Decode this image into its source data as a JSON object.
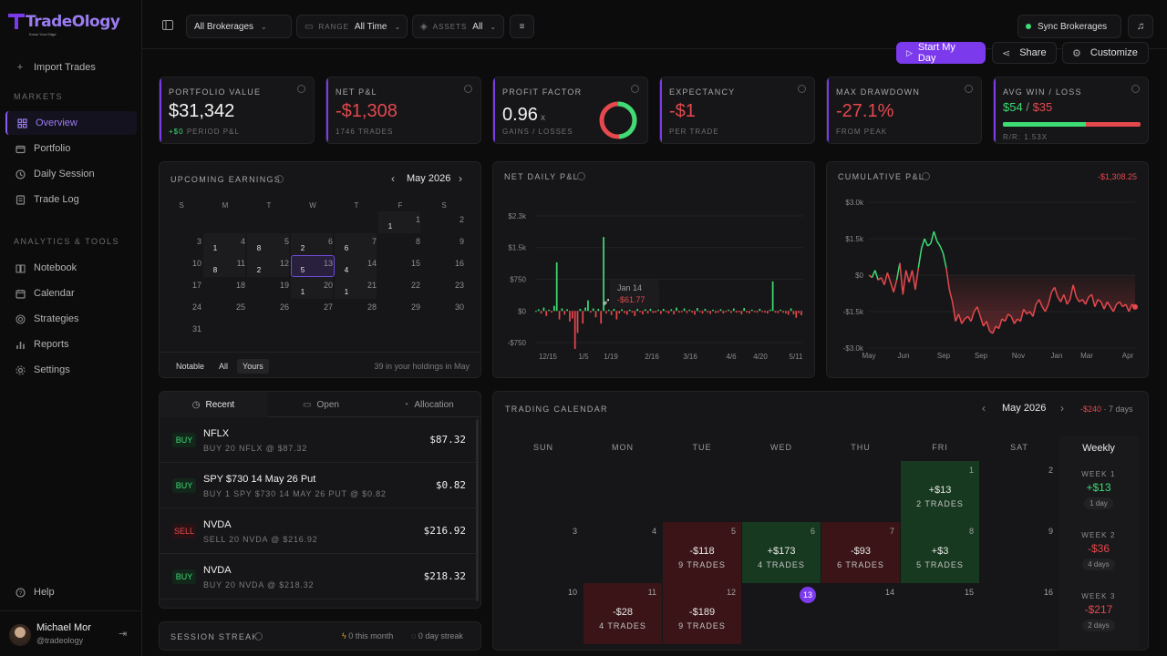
{
  "brand": {
    "name": "TradeOlogy",
    "tagline": "Know Your Edge"
  },
  "sidebar": {
    "import_label": "Import Trades",
    "sections": [
      {
        "heading": "MARKETS",
        "items": [
          {
            "label": "Overview",
            "icon": "grid-icon",
            "active": true
          },
          {
            "label": "Portfolio",
            "icon": "wallet-icon"
          },
          {
            "label": "Daily Session",
            "icon": "clock-icon"
          },
          {
            "label": "Trade Log",
            "icon": "list-icon"
          }
        ]
      },
      {
        "heading": "ANALYTICS & TOOLS",
        "items": [
          {
            "label": "Notebook",
            "icon": "book-icon"
          },
          {
            "label": "Calendar",
            "icon": "calendar-icon"
          },
          {
            "label": "Strategies",
            "icon": "target-icon"
          },
          {
            "label": "Reports",
            "icon": "bar-chart-icon"
          },
          {
            "label": "Settings",
            "icon": "gear-icon"
          }
        ]
      }
    ],
    "help_label": "Help",
    "user": {
      "name": "Michael Mor",
      "handle": "@tradeology"
    }
  },
  "topbar": {
    "brokerages": "All Brokerages",
    "range_label": "RANGE",
    "range_value": "All Time",
    "assets_label": "ASSETS",
    "assets_value": "All",
    "sync_label": "Sync Brokerages"
  },
  "actions": {
    "start": "Start My Day",
    "share": "Share",
    "customize": "Customize"
  },
  "kpis": {
    "portfolio": {
      "title": "PORTFOLIO VALUE",
      "value": "$31,342",
      "delta": "+$0",
      "sub": "PERIOD P&L"
    },
    "net_pnl": {
      "title": "NET P&L",
      "value": "-$1,308",
      "sub": "1746 TRADES"
    },
    "profit_factor": {
      "title": "PROFIT FACTOR",
      "value": "0.96",
      "suffix": "x",
      "sub": "GAINS / LOSSES",
      "gain_fraction": 0.49
    },
    "expectancy": {
      "title": "EXPECTANCY",
      "value": "-$1",
      "sub": "PER TRADE"
    },
    "drawdown": {
      "title": "MAX DRAWDOWN",
      "value": "-27.1%",
      "sub": "FROM PEAK"
    },
    "avg_win_loss": {
      "title": "AVG WIN / LOSS",
      "win": "$54",
      "sep": "/",
      "loss": "$35",
      "sub": "R/R: 1.53X",
      "win_fraction": 0.6
    }
  },
  "earnings": {
    "title": "UPCOMING EARNINGS",
    "month": "May 2026",
    "dow": [
      "S",
      "M",
      "T",
      "W",
      "T",
      "F",
      "S"
    ],
    "weeks": [
      [
        null,
        null,
        null,
        null,
        null,
        {
          "d": "1",
          "c": "1"
        },
        {
          "d": "2"
        }
      ],
      [
        {
          "d": "3"
        },
        {
          "d": "4",
          "c": "1"
        },
        {
          "d": "5",
          "c": "8"
        },
        {
          "d": "6",
          "c": "2"
        },
        {
          "d": "7",
          "c": "6"
        },
        {
          "d": "8"
        },
        {
          "d": "9"
        }
      ],
      [
        {
          "d": "10"
        },
        {
          "d": "11",
          "c": "8"
        },
        {
          "d": "12",
          "c": "2"
        },
        {
          "d": "13",
          "c": "5",
          "hl": true
        },
        {
          "d": "14",
          "c": "4"
        },
        {
          "d": "15"
        },
        {
          "d": "16"
        }
      ],
      [
        {
          "d": "17"
        },
        {
          "d": "18"
        },
        {
          "d": "19"
        },
        {
          "d": "20",
          "c": "1"
        },
        {
          "d": "21",
          "c": "1"
        },
        {
          "d": "22"
        },
        {
          "d": "23"
        }
      ],
      [
        {
          "d": "24"
        },
        {
          "d": "25"
        },
        {
          "d": "26"
        },
        {
          "d": "27"
        },
        {
          "d": "28"
        },
        {
          "d": "29"
        },
        {
          "d": "30"
        }
      ],
      [
        {
          "d": "31"
        },
        null,
        null,
        null,
        null,
        null,
        null
      ]
    ],
    "filters": [
      "Notable",
      "All",
      "Yours"
    ],
    "footer": "39 in your holdings in May"
  },
  "net_daily_title": "NET DAILY P&L",
  "cumulative_title": "CUMULATIVE P&L",
  "cumulative_total": "-$1,308.25",
  "chart_data": [
    {
      "type": "bar",
      "title": "NET DAILY P&L",
      "y_ticks": [
        "$2.3k",
        "$1.5k",
        "$750",
        "$0",
        "-$750"
      ],
      "x_ticks": [
        "12/15",
        "1/5",
        "1/19",
        "2/16",
        "3/16",
        "4/6",
        "4/20",
        "5/11"
      ],
      "ylim": [
        -900,
        2400
      ],
      "values": [
        0,
        40,
        -60,
        80,
        -120,
        30,
        -40,
        120,
        1150,
        -200,
        60,
        -90,
        40,
        -250,
        -180,
        -900,
        -520,
        50,
        -300,
        80,
        250,
        -40,
        60,
        -150,
        50,
        -300,
        1750,
        -62,
        30,
        -100,
        80,
        -200,
        -60,
        40,
        -50,
        -90,
        30,
        -40,
        -120,
        60,
        -30,
        -80,
        40,
        -60,
        100,
        -50,
        -40,
        30,
        -70,
        50,
        -30,
        -60,
        40,
        -80,
        80,
        -40,
        -30,
        60,
        -50,
        30,
        -40,
        -90,
        70,
        -30,
        -60,
        50,
        -40,
        -70,
        30,
        -50,
        -40,
        40,
        -60,
        -30,
        30,
        -50,
        60,
        -40,
        -30,
        -80,
        70,
        -40,
        -60,
        30,
        -30,
        -40,
        50,
        -30,
        -40,
        -60,
        30,
        700,
        -40,
        -50,
        30,
        -40,
        -60,
        -90,
        60,
        -80,
        -160,
        -50,
        -100
      ],
      "grid": true,
      "tooltip": {
        "date": "Jan 14",
        "value": "-$61.77"
      }
    },
    {
      "type": "line",
      "title": "CUMULATIVE P&L",
      "y_ticks": [
        "$3.0k",
        "$1.5k",
        "$0",
        "-$1.5k",
        "-$3.0k"
      ],
      "x_ticks": [
        "May",
        "Jun",
        "Sep",
        "Sep",
        "Nov",
        "Jan",
        "Mar",
        "Apr"
      ],
      "ylim": [
        -3000,
        3000
      ],
      "values": [
        0,
        -100,
        200,
        -200,
        -100,
        -400,
        100,
        -300,
        -700,
        -200,
        500,
        -800,
        200,
        -300,
        200,
        -600,
        300,
        1100,
        1500,
        1200,
        1300,
        1800,
        1400,
        1200,
        900,
        300,
        -600,
        -1100,
        -1900,
        -1600,
        -2000,
        -1800,
        -1700,
        -1900,
        -1500,
        -1300,
        -1700,
        -2100,
        -1900,
        -2300,
        -2400,
        -2100,
        -2200,
        -1800,
        -1900,
        -1600,
        -1700,
        -2000,
        -1800,
        -1900,
        -1400,
        -1600,
        -1500,
        -1700,
        -1200,
        -1000,
        -1300,
        -1500,
        -1200,
        -700,
        -500,
        -900,
        -1100,
        -800,
        -1200,
        -1000,
        -400,
        -900,
        -1100,
        -1000,
        -1200,
        -900,
        -800,
        -1300,
        -1000,
        -1100,
        -1400,
        -1100,
        -1300,
        -1500,
        -1200,
        -1100,
        -1300,
        -1200,
        -1500,
        -1200,
        -1308
      ]
    }
  ],
  "trades_panel": {
    "tabs": [
      "Recent",
      "Open",
      "Allocation"
    ],
    "rows": [
      {
        "side": "BUY",
        "symbol": "NFLX",
        "desc": "BUY 20 NFLX @ $87.32",
        "price": "$87.32"
      },
      {
        "side": "BUY",
        "symbol": "SPY $730 14 May 26 Put",
        "desc": "BUY 1 SPY $730 14 MAY 26 PUT @ $0.82",
        "price": "$0.82"
      },
      {
        "side": "SELL",
        "symbol": "NVDA",
        "desc": "SELL 20 NVDA @ $216.92",
        "price": "$216.92"
      },
      {
        "side": "BUY",
        "symbol": "NVDA",
        "desc": "BUY 20 NVDA @ $218.32",
        "price": "$218.32"
      }
    ]
  },
  "streak": {
    "title": "SESSION STREAK",
    "month": "0 this month",
    "days": "0 day streak"
  },
  "trading_calendar": {
    "title": "TRADING CALENDAR",
    "month": "May 2026",
    "summary_amt": "-$240",
    "summary_days": "· 7 days",
    "dow": [
      "SUN",
      "MON",
      "TUE",
      "WED",
      "THU",
      "FRI",
      "SAT"
    ],
    "weekly_label": "Weekly",
    "rows": [
      [
        null,
        null,
        null,
        null,
        null,
        {
          "d": "1",
          "amt": "+$13",
          "cnt": "2 TRADES",
          "pos": true
        },
        {
          "d": "2"
        }
      ],
      [
        {
          "d": "3"
        },
        {
          "d": "4"
        },
        {
          "d": "5",
          "amt": "-$118",
          "cnt": "9 TRADES",
          "pos": false
        },
        {
          "d": "6",
          "amt": "+$173",
          "cnt": "4 TRADES",
          "pos": true
        },
        {
          "d": "7",
          "amt": "-$93",
          "cnt": "6 TRADES",
          "pos": false
        },
        {
          "d": "8",
          "amt": "+$3",
          "cnt": "5 TRADES",
          "pos": true
        },
        {
          "d": "9"
        }
      ],
      [
        {
          "d": "10"
        },
        {
          "d": "11",
          "amt": "-$28",
          "cnt": "4 TRADES",
          "pos": false
        },
        {
          "d": "12",
          "amt": "-$189",
          "cnt": "9 TRADES",
          "pos": false
        },
        {
          "d": "13",
          "today": true
        },
        {
          "d": "14"
        },
        {
          "d": "15"
        },
        {
          "d": "16"
        }
      ]
    ],
    "weeks": [
      {
        "label": "WEEK 1",
        "value": "+$13",
        "days": "1 day",
        "pos": true
      },
      {
        "label": "WEEK 2",
        "value": "-$36",
        "days": "4 days",
        "pos": false
      },
      {
        "label": "WEEK 3",
        "value": "-$217",
        "days": "2 days",
        "pos": false
      }
    ]
  }
}
